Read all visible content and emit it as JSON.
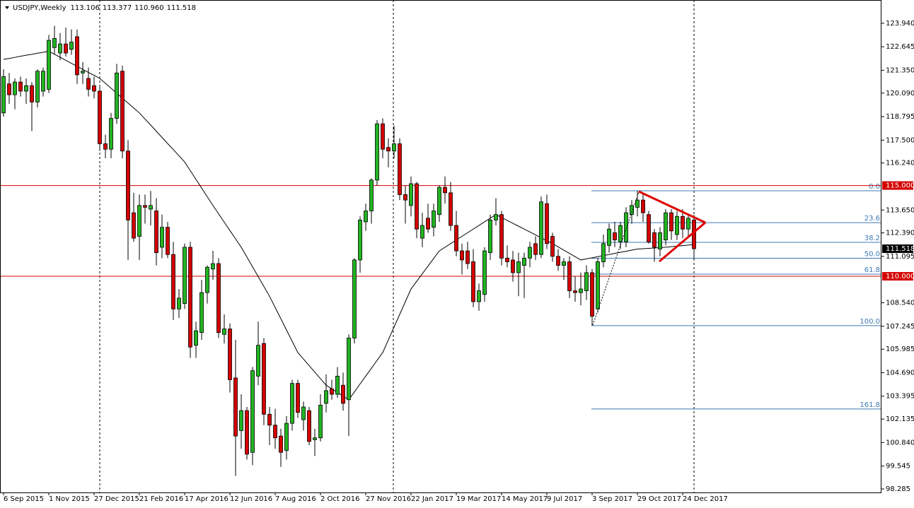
{
  "chart_data": {
    "type": "candlestick",
    "title": "USDJPY,Weekly",
    "last_bar_labels": [
      "113.106",
      "113.377",
      "110.960",
      "111.518"
    ],
    "categories": [
      "6 Sep 2015",
      null,
      null,
      null,
      null,
      null,
      null,
      null,
      "1 Nov 2015",
      null,
      null,
      null,
      null,
      null,
      null,
      null,
      "27 Dec 2015",
      null,
      null,
      null,
      null,
      null,
      null,
      null,
      "21 Feb 2016",
      null,
      null,
      null,
      null,
      null,
      null,
      null,
      "17 Apr 2016",
      null,
      null,
      null,
      null,
      null,
      null,
      null,
      "12 Jun 2016",
      null,
      null,
      null,
      null,
      null,
      null,
      null,
      "7 Aug 2016",
      null,
      null,
      null,
      null,
      null,
      null,
      null,
      "2 Oct 2016",
      null,
      null,
      null,
      null,
      null,
      null,
      null,
      "27 Nov 2016",
      null,
      null,
      null,
      null,
      null,
      null,
      null,
      "22 Jan 2017",
      null,
      null,
      null,
      null,
      null,
      null,
      null,
      "19 Mar 2017",
      null,
      null,
      null,
      null,
      null,
      null,
      null,
      "14 May 2017",
      null,
      null,
      null,
      null,
      null,
      null,
      null,
      "9 Jul 2017",
      null,
      null,
      null,
      null,
      null,
      null,
      null,
      "3 Sep 2017",
      null,
      null,
      null,
      null,
      null,
      null,
      null,
      "29 Oct 2017",
      null,
      null,
      null,
      null,
      null,
      null,
      null,
      "24 Dec 2017",
      null,
      null
    ],
    "ohlc": [
      [
        119.0,
        121.4,
        118.8,
        121.0
      ],
      [
        120.6,
        121.2,
        119.5,
        120.0
      ],
      [
        120.0,
        120.9,
        119.2,
        120.7
      ],
      [
        120.7,
        121.0,
        119.9,
        120.2
      ],
      [
        120.2,
        120.9,
        119.5,
        120.5
      ],
      [
        120.5,
        120.7,
        118.0,
        119.6
      ],
      [
        119.6,
        121.4,
        119.3,
        121.3
      ],
      [
        120.2,
        121.5,
        119.9,
        121.3
      ],
      [
        120.3,
        123.3,
        120.1,
        123.0
      ],
      [
        122.6,
        123.8,
        122.2,
        123.1
      ],
      [
        122.3,
        123.4,
        121.9,
        122.8
      ],
      [
        122.8,
        123.7,
        122.1,
        122.3
      ],
      [
        122.5,
        123.6,
        122.2,
        122.9
      ],
      [
        123.2,
        123.6,
        120.6,
        121.1
      ],
      [
        121.2,
        121.8,
        120.6,
        121.3
      ],
      [
        120.9,
        121.5,
        119.9,
        120.3
      ],
      [
        120.5,
        121.0,
        119.8,
        120.2
      ],
      [
        120.2,
        120.5,
        116.9,
        117.3
      ],
      [
        117.3,
        117.8,
        116.5,
        117.0
      ],
      [
        117.0,
        119.0,
        116.5,
        118.7
      ],
      [
        118.7,
        121.7,
        118.4,
        121.2
      ],
      [
        121.3,
        121.6,
        116.5,
        116.9
      ],
      [
        116.9,
        117.5,
        110.9,
        113.1
      ],
      [
        113.5,
        114.6,
        111.9,
        112.1
      ],
      [
        112.2,
        114.5,
        110.9,
        113.9
      ],
      [
        113.9,
        114.5,
        112.9,
        113.8
      ],
      [
        113.7,
        114.7,
        112.8,
        113.9
      ],
      [
        113.6,
        114.3,
        110.6,
        111.3
      ],
      [
        111.6,
        113.4,
        111.0,
        112.7
      ],
      [
        112.7,
        113.0,
        111.0,
        111.2
      ],
      [
        111.2,
        111.9,
        107.6,
        108.2
      ],
      [
        108.2,
        109.3,
        107.7,
        108.8
      ],
      [
        108.5,
        111.8,
        108.2,
        111.6
      ],
      [
        111.6,
        111.9,
        105.5,
        106.1
      ],
      [
        106.2,
        107.5,
        105.5,
        107.0
      ],
      [
        106.9,
        109.8,
        106.5,
        109.1
      ],
      [
        109.1,
        110.6,
        108.5,
        110.5
      ],
      [
        110.4,
        111.4,
        109.8,
        110.7
      ],
      [
        110.7,
        111.0,
        106.6,
        106.9
      ],
      [
        106.8,
        107.9,
        106.3,
        107.1
      ],
      [
        107.1,
        107.4,
        103.6,
        104.3
      ],
      [
        104.4,
        106.5,
        99.0,
        101.2
      ],
      [
        101.5,
        103.5,
        100.5,
        102.6
      ],
      [
        102.6,
        102.8,
        99.9,
        100.2
      ],
      [
        100.3,
        105.0,
        99.6,
        104.8
      ],
      [
        104.5,
        107.5,
        104.0,
        106.2
      ],
      [
        106.3,
        106.6,
        101.8,
        102.4
      ],
      [
        102.4,
        102.8,
        100.7,
        101.8
      ],
      [
        101.8,
        102.7,
        100.5,
        101.1
      ],
      [
        101.2,
        101.6,
        99.5,
        100.3
      ],
      [
        100.4,
        102.3,
        99.9,
        101.9
      ],
      [
        101.9,
        104.3,
        101.5,
        104.1
      ],
      [
        104.1,
        104.3,
        102.2,
        102.5
      ],
      [
        102.1,
        103.1,
        101.5,
        102.8
      ],
      [
        102.6,
        102.8,
        100.7,
        100.9
      ],
      [
        101.0,
        101.6,
        100.1,
        101.1
      ],
      [
        101.1,
        103.5,
        100.9,
        102.9
      ],
      [
        103.0,
        104.6,
        102.5,
        103.7
      ],
      [
        103.8,
        104.3,
        103.2,
        103.5
      ],
      [
        103.5,
        105.0,
        103.3,
        104.5
      ],
      [
        104.0,
        104.7,
        102.6,
        103.0
      ],
      [
        103.2,
        106.8,
        101.2,
        106.6
      ],
      [
        106.6,
        111.0,
        106.3,
        110.9
      ],
      [
        110.9,
        113.3,
        110.2,
        113.1
      ],
      [
        113.0,
        114.0,
        112.5,
        113.6
      ],
      [
        113.6,
        115.4,
        112.9,
        115.3
      ],
      [
        115.3,
        118.6,
        115.0,
        118.4
      ],
      [
        118.4,
        118.7,
        116.5,
        117.0
      ],
      [
        117.1,
        117.6,
        116.0,
        116.9
      ],
      [
        116.9,
        118.3,
        116.5,
        117.3
      ],
      [
        117.3,
        117.6,
        114.2,
        114.5
      ],
      [
        114.5,
        115.0,
        112.9,
        114.2
      ],
      [
        113.9,
        115.5,
        113.3,
        115.1
      ],
      [
        115.1,
        115.2,
        112.1,
        112.6
      ],
      [
        112.1,
        113.5,
        111.6,
        112.8
      ],
      [
        113.2,
        114.0,
        112.4,
        112.6
      ],
      [
        112.7,
        114.0,
        112.2,
        113.6
      ],
      [
        113.4,
        115.0,
        113.0,
        114.9
      ],
      [
        114.9,
        115.5,
        114.0,
        114.6
      ],
      [
        114.6,
        115.2,
        112.5,
        112.8
      ],
      [
        112.8,
        113.6,
        111.1,
        111.4
      ],
      [
        111.4,
        111.8,
        110.1,
        110.9
      ],
      [
        111.4,
        111.9,
        110.4,
        110.7
      ],
      [
        110.8,
        111.5,
        108.3,
        108.6
      ],
      [
        108.6,
        109.6,
        108.1,
        109.2
      ],
      [
        109.0,
        111.6,
        108.6,
        111.4
      ],
      [
        111.3,
        113.4,
        110.9,
        113.1
      ],
      [
        113.1,
        114.3,
        112.8,
        113.4
      ],
      [
        113.4,
        113.6,
        110.6,
        111.0
      ],
      [
        111.0,
        111.7,
        110.5,
        110.8
      ],
      [
        110.9,
        111.4,
        109.7,
        110.2
      ],
      [
        110.2,
        111.3,
        108.9,
        110.8
      ],
      [
        110.6,
        111.3,
        108.8,
        111.0
      ],
      [
        111.0,
        111.9,
        110.5,
        111.6
      ],
      [
        111.8,
        112.2,
        110.9,
        111.2
      ],
      [
        111.2,
        114.4,
        111.0,
        114.1
      ],
      [
        114.0,
        114.5,
        111.5,
        111.8
      ],
      [
        112.2,
        112.4,
        110.8,
        111.1
      ],
      [
        111.1,
        111.5,
        110.3,
        110.6
      ],
      [
        110.6,
        111.0,
        109.8,
        110.8
      ],
      [
        110.8,
        111.1,
        108.8,
        109.2
      ],
      [
        109.2,
        110.0,
        108.6,
        109.1
      ],
      [
        109.1,
        110.2,
        108.4,
        109.3
      ],
      [
        109.2,
        110.6,
        108.7,
        110.2
      ],
      [
        110.2,
        110.4,
        107.28,
        107.8
      ],
      [
        108.2,
        111.0,
        108.0,
        110.8
      ],
      [
        110.8,
        112.3,
        110.5,
        111.8
      ],
      [
        111.7,
        112.9,
        111.3,
        112.6
      ],
      [
        112.4,
        113.0,
        111.6,
        112.0
      ],
      [
        111.9,
        113.0,
        111.5,
        112.8
      ],
      [
        111.9,
        113.8,
        111.6,
        113.5
      ],
      [
        113.4,
        114.2,
        112.9,
        113.9
      ],
      [
        113.8,
        114.71,
        113.3,
        114.2
      ],
      [
        114.2,
        114.5,
        113.0,
        113.5
      ],
      [
        113.4,
        113.6,
        111.8,
        111.9
      ],
      [
        112.4,
        112.6,
        110.8,
        111.6
      ],
      [
        111.5,
        112.7,
        111.1,
        112.4
      ],
      [
        112.0,
        113.7,
        111.7,
        113.5
      ],
      [
        113.5,
        113.7,
        112.0,
        112.5
      ],
      [
        112.3,
        113.6,
        112.0,
        113.3
      ],
      [
        113.3,
        113.7,
        112.1,
        112.6
      ],
      [
        112.6,
        113.4,
        112.2,
        113.2
      ],
      [
        113.106,
        113.377,
        110.96,
        111.518
      ]
    ],
    "ma": [
      121.95,
      122.0,
      122.06,
      122.12,
      122.18,
      122.23,
      122.29,
      122.34,
      122.4,
      122.23,
      122.07,
      121.9,
      121.73,
      121.57,
      121.4,
      121.23,
      121.07,
      120.9,
      120.63,
      120.36,
      120.09,
      119.81,
      119.54,
      119.27,
      119.0,
      118.66,
      118.33,
      117.99,
      117.65,
      117.31,
      116.98,
      116.64,
      116.3,
      115.82,
      115.34,
      114.86,
      114.38,
      113.9,
      113.44,
      112.98,
      112.52,
      112.06,
      111.6,
      111.06,
      110.52,
      109.98,
      109.44,
      108.9,
      108.28,
      107.66,
      107.04,
      106.42,
      105.8,
      105.44,
      105.08,
      104.72,
      104.36,
      104.0,
      103.8,
      103.6,
      103.4,
      103.2,
      103.63,
      104.07,
      104.5,
      104.93,
      105.37,
      105.8,
      106.5,
      107.2,
      107.9,
      108.6,
      109.3,
      109.72,
      110.14,
      110.56,
      110.98,
      111.4,
      111.6,
      111.8,
      112.0,
      112.2,
      112.4,
      112.6,
      112.8,
      113.0,
      113.2,
      113.4,
      113.24,
      113.08,
      112.92,
      112.76,
      112.6,
      112.44,
      112.28,
      112.12,
      111.96,
      111.8,
      111.62,
      111.44,
      111.26,
      111.08,
      110.9,
      110.96,
      111.02,
      111.08,
      111.14,
      111.2,
      111.26,
      111.32,
      111.38,
      111.44,
      111.5,
      111.52,
      111.54,
      111.56,
      111.58,
      111.6,
      111.63,
      111.66,
      111.69,
      111.72,
      111.75
    ],
    "up_color": "#22b422",
    "down_color": "#d40000",
    "ma_color": "#000000",
    "ylim": [
      97.78,
      125.22
    ],
    "yticks": [
      {
        "value": 123.94,
        "label": "123.940"
      },
      122.645,
      {
        "value": 121.35,
        "label": "121.350"
      },
      {
        "value": 120.09,
        "label": "120.090"
      },
      118.795,
      {
        "value": 117.5,
        "label": "117.500"
      },
      {
        "value": 116.24,
        "label": "116.240"
      },
      {
        "value": 113.65,
        "label": "113.650"
      },
      {
        "value": 112.39,
        "label": "112.390"
      },
      111.095,
      {
        "value": 108.54,
        "label": "108.540"
      },
      107.245,
      105.985,
      {
        "value": 104.69,
        "label": "104.690"
      },
      103.395,
      102.135,
      {
        "value": 100.84,
        "label": "100.840"
      },
      99.545,
      98.285
    ],
    "hlines": [
      {
        "value": 115,
        "label": "115.000"
      },
      {
        "value": 110,
        "label": "110.000"
      }
    ],
    "hline_color": "#d40000",
    "last_price_label": "111.518",
    "fib": {
      "high": 114.71,
      "low": 107.28,
      "color": "#3c78b4",
      "levels": [
        {
          "value": 0,
          "label": "0.0"
        },
        {
          "value": 23.6,
          "label": "23.6"
        },
        {
          "value": 38.2,
          "label": "38.2"
        },
        {
          "value": 50,
          "label": "50.0"
        },
        {
          "value": 61.8,
          "label": "61.8"
        },
        {
          "value": 100,
          "label": "100.0"
        },
        {
          "value": 161.8,
          "label": "161.8"
        }
      ]
    }
  }
}
